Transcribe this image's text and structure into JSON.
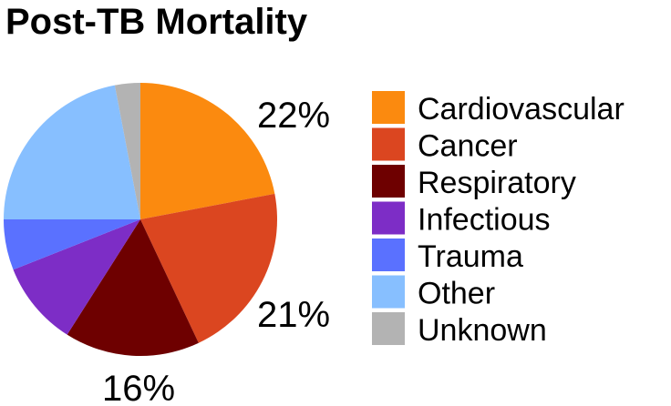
{
  "chart_data": {
    "type": "pie",
    "title": "Post-TB Mortality",
    "legend_position": "right",
    "slices": [
      {
        "label": "Cardiovascular",
        "value": 22,
        "color": "#FB8A0F",
        "display": "22%"
      },
      {
        "label": "Cancer",
        "value": 21,
        "color": "#DB4620",
        "display": "21%"
      },
      {
        "label": "Respiratory",
        "value": 16,
        "color": "#6E0000",
        "display": "16%"
      },
      {
        "label": "Infectious",
        "value": 10,
        "color": "#7D2DC6",
        "display": ""
      },
      {
        "label": "Trauma",
        "value": 6,
        "color": "#5A71FF",
        "display": ""
      },
      {
        "label": "Other",
        "value": 22,
        "color": "#87BFFF",
        "display": ""
      },
      {
        "label": "Unknown",
        "value": 3,
        "color": "#B3B3B3",
        "display": ""
      }
    ]
  }
}
